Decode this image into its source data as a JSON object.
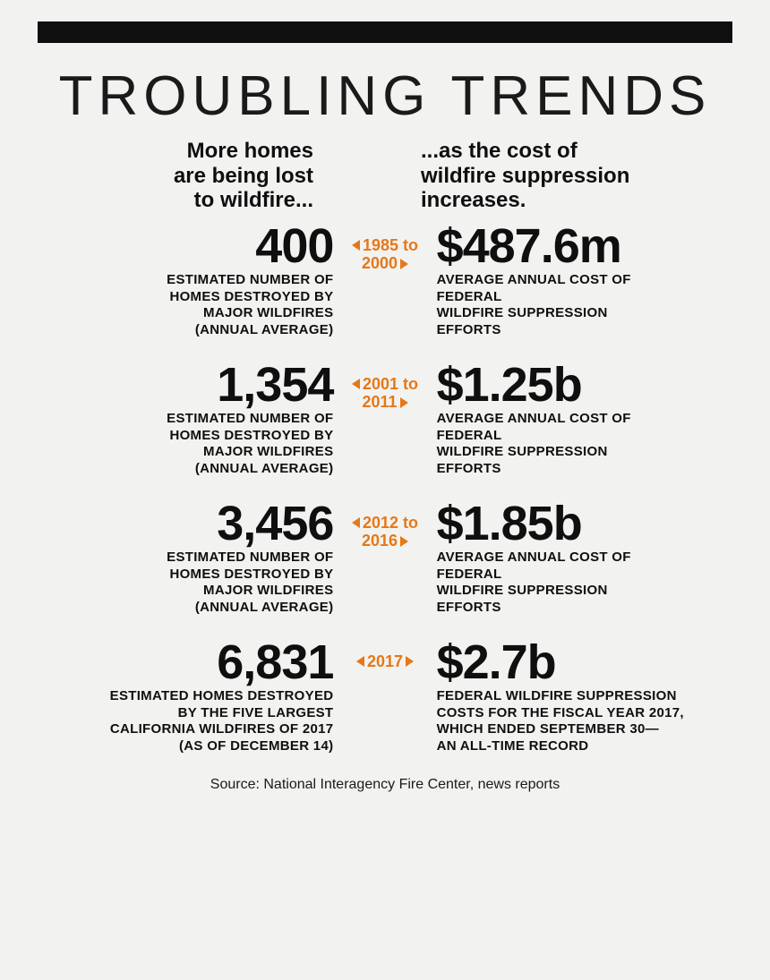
{
  "colors": {
    "background": "#f2f2f1",
    "text": "#0f0f0f",
    "accent": "#e67817",
    "topbar": "#0f0f0f"
  },
  "title": "TROUBLING TRENDS",
  "subhead_left_l1": "More homes",
  "subhead_left_l2": "are being lost",
  "subhead_left_l3": "to wildfire...",
  "subhead_right_l1": "...as the cost of",
  "subhead_right_l2": "wildfire suppression",
  "subhead_right_l3": "increases.",
  "rows": [
    {
      "period_l1": "1985 to",
      "period_l2": "2000",
      "left_num": "400",
      "left_desc_l1": "ESTIMATED NUMBER OF",
      "left_desc_l2": "HOMES DESTROYED BY",
      "left_desc_l3": "MAJOR WILDFIRES",
      "left_desc_l4": "(ANNUAL AVERAGE)",
      "right_num": "$487.6m",
      "right_desc_l1": "AVERAGE ANNUAL COST OF FEDERAL",
      "right_desc_l2": "WILDFIRE SUPPRESSION EFFORTS",
      "right_desc_l3": "",
      "right_desc_l4": ""
    },
    {
      "period_l1": "2001 to",
      "period_l2": "2011",
      "left_num": "1,354",
      "left_desc_l1": "ESTIMATED NUMBER OF",
      "left_desc_l2": "HOMES DESTROYED BY",
      "left_desc_l3": "MAJOR WILDFIRES",
      "left_desc_l4": "(ANNUAL AVERAGE)",
      "right_num": "$1.25b",
      "right_desc_l1": "AVERAGE ANNUAL COST OF FEDERAL",
      "right_desc_l2": "WILDFIRE SUPPRESSION EFFORTS",
      "right_desc_l3": "",
      "right_desc_l4": ""
    },
    {
      "period_l1": "2012 to",
      "period_l2": "2016",
      "left_num": "3,456",
      "left_desc_l1": "ESTIMATED NUMBER OF",
      "left_desc_l2": "HOMES DESTROYED BY",
      "left_desc_l3": "MAJOR WILDFIRES",
      "left_desc_l4": "(ANNUAL AVERAGE)",
      "right_num": "$1.85b",
      "right_desc_l1": "AVERAGE ANNUAL COST OF FEDERAL",
      "right_desc_l2": "WILDFIRE SUPPRESSION EFFORTS",
      "right_desc_l3": "",
      "right_desc_l4": ""
    },
    {
      "period_l1": "2017",
      "period_l2": "",
      "left_num": "6,831",
      "left_desc_l1": "ESTIMATED HOMES DESTROYED",
      "left_desc_l2": "BY THE FIVE LARGEST",
      "left_desc_l3": "CALIFORNIA WILDFIRES OF 2017",
      "left_desc_l4": "(AS OF DECEMBER 14)",
      "right_num": "$2.7b",
      "right_desc_l1": "FEDERAL WILDFIRE SUPPRESSION",
      "right_desc_l2": "COSTS FOR THE FISCAL YEAR 2017,",
      "right_desc_l3": "WHICH ENDED SEPTEMBER 30—",
      "right_desc_l4": "AN ALL-TIME RECORD"
    }
  ],
  "source": "Source: National Interagency Fire Center, news reports"
}
